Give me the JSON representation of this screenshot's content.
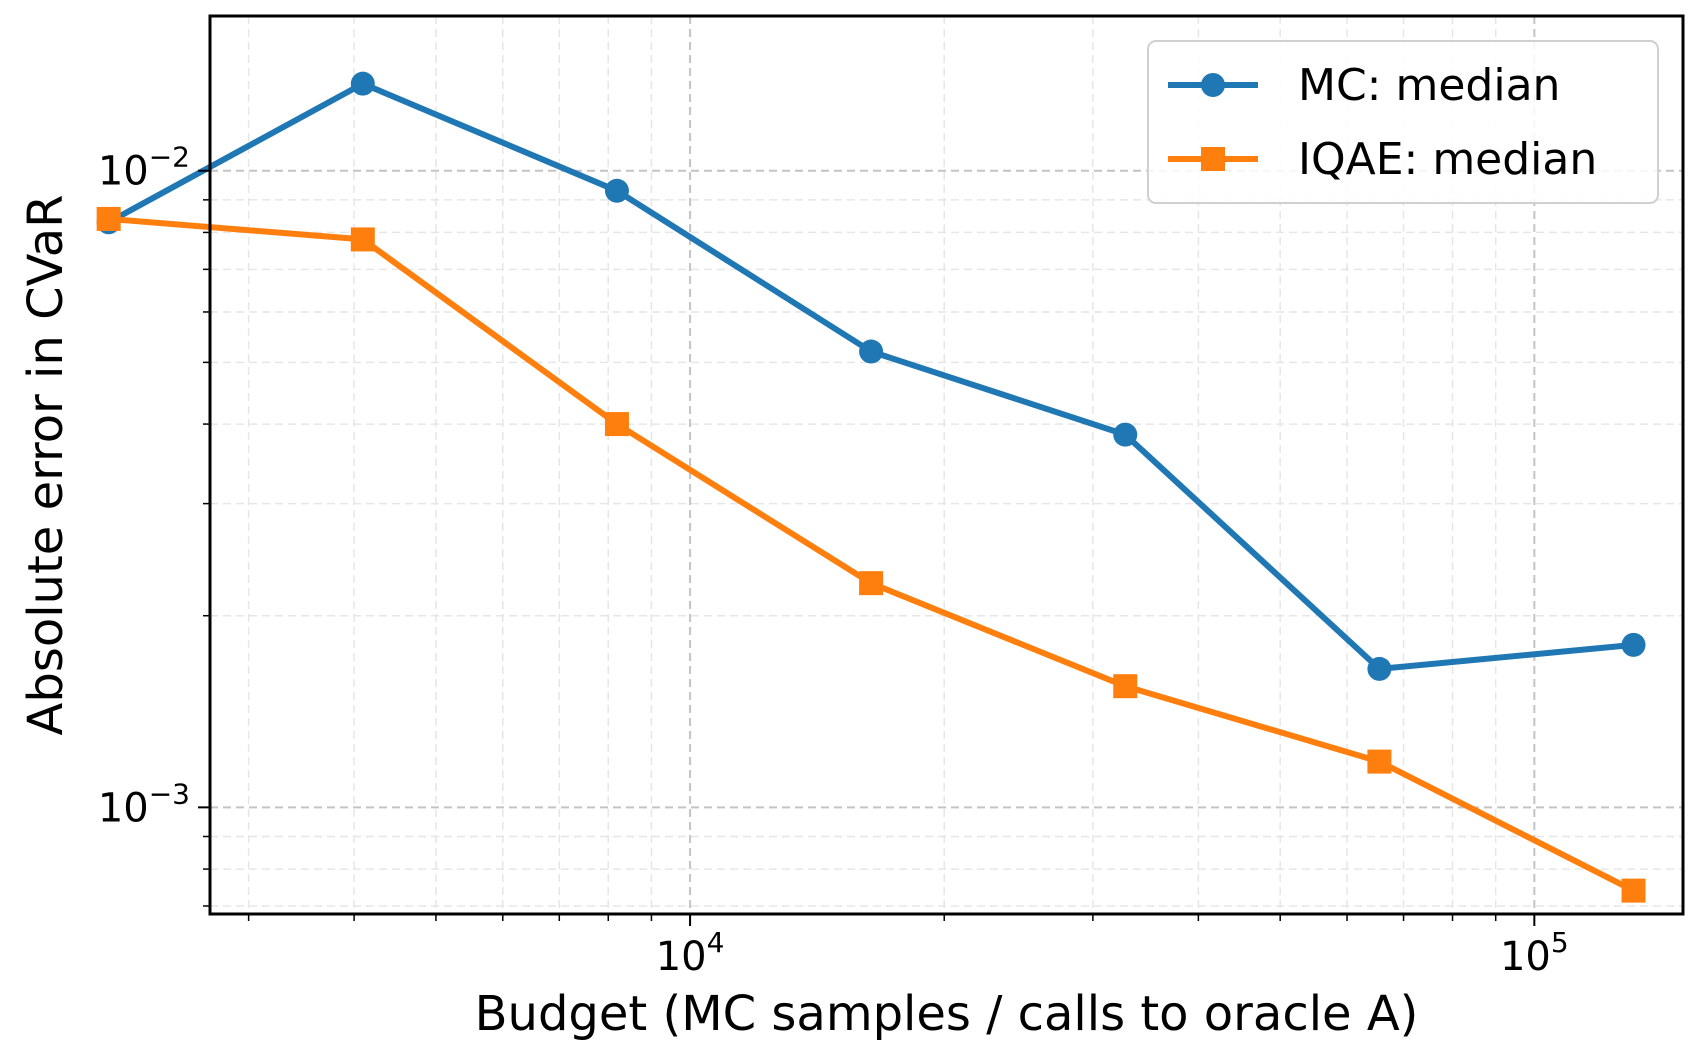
{
  "chart_data": {
    "type": "line",
    "title": "",
    "xlabel": "Budget (MC samples / calls to oracle A)",
    "ylabel": "Absolute error in CVaR",
    "xscale": "log",
    "yscale": "log",
    "xlim": [
      2700,
      150000
    ],
    "ylim": [
      0.00068,
      0.0175
    ],
    "x_ticks": [
      {
        "value": 10000,
        "base": "10",
        "exp": "4"
      },
      {
        "value": 100000,
        "base": "10",
        "exp": "5"
      }
    ],
    "y_ticks": [
      {
        "value": 0.001,
        "base": "10",
        "exp": "−3"
      },
      {
        "value": 0.01,
        "base": "10",
        "exp": "−2"
      }
    ],
    "grid": true,
    "legend_position": "top-right",
    "series": [
      {
        "name": "MC: median",
        "color": "#1f77b4",
        "marker": "circle",
        "x": [
          2048,
          4096,
          8192,
          16384,
          32768,
          65536,
          131072
        ],
        "y": [
          0.0083,
          0.0137,
          0.0093,
          0.0052,
          0.00385,
          0.00165,
          0.0018
        ]
      },
      {
        "name": "IQAE: median",
        "color": "#ff7f0e",
        "marker": "square",
        "x": [
          2048,
          4096,
          8192,
          16384,
          32768,
          65536,
          131072
        ],
        "y": [
          0.0084,
          0.0078,
          0.004,
          0.00225,
          0.00155,
          0.00118,
          0.00074
        ]
      }
    ]
  }
}
